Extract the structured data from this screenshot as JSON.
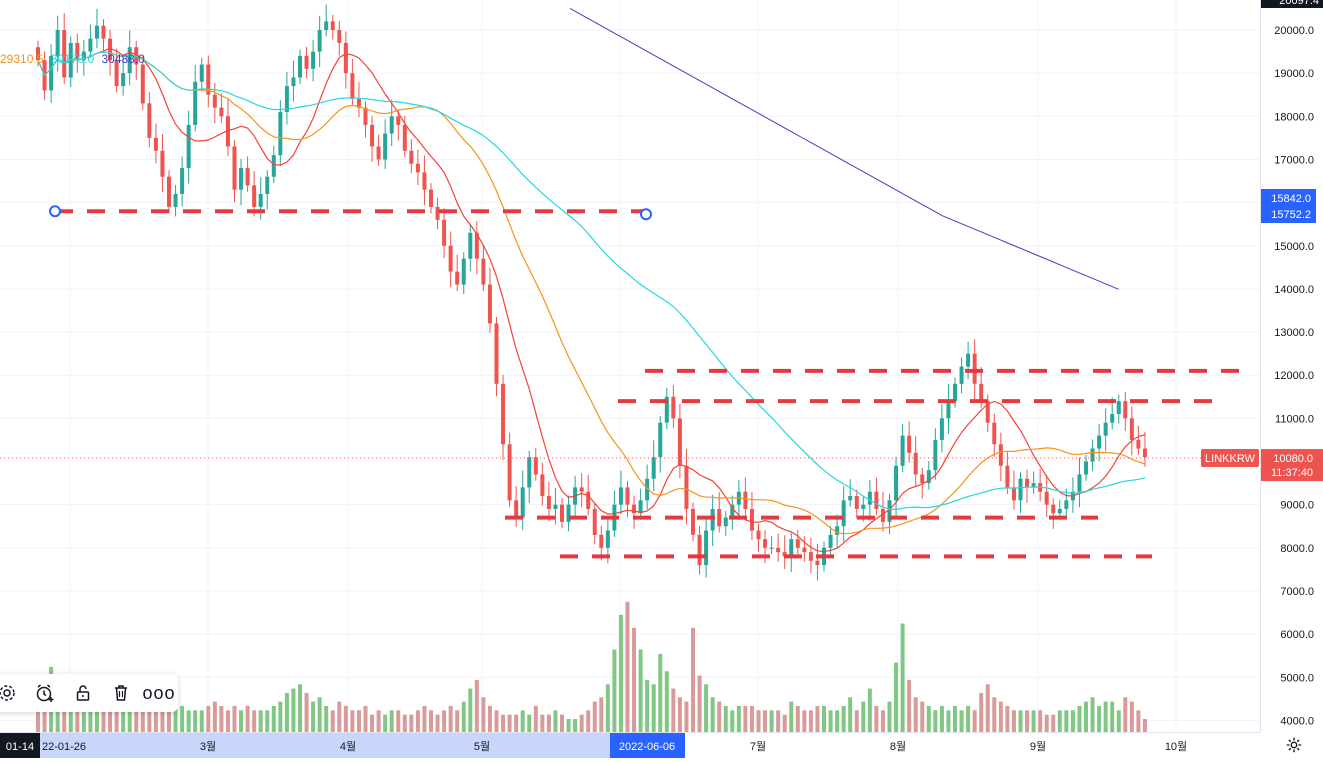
{
  "symbol": "LINKKRW",
  "current_price": "10080.0",
  "countdown": "11:37:40",
  "top_price_label": "20097.4",
  "price_axis": {
    "ticks": [
      "20000.0",
      "19000.0",
      "18000.0",
      "17000.0",
      "15000.0",
      "14000.0",
      "13000.0",
      "12000.0",
      "11000.0",
      "9000.0",
      "8000.0",
      "7000.0",
      "6000.0",
      "5000.0",
      "4000.0"
    ],
    "badge_upper": "15842.0",
    "badge_lower": "15752.2"
  },
  "time_axis": {
    "labels": [
      "3월",
      "4월",
      "5월",
      "7월",
      "8월",
      "9월",
      "10월"
    ],
    "highlight_left_a": "01-14",
    "highlight_left_b": "22-01-26",
    "highlight_date": "2022-06-06"
  },
  "ma_legend": [
    {
      "value": "29310.5",
      "color": "#f7931a"
    },
    {
      "value": "30170.0",
      "color": "#26d7e0"
    },
    {
      "value": "30488.0",
      "color": "#3f3fbf"
    }
  ],
  "colors": {
    "up": "#26a69a",
    "down": "#ef5350",
    "volume_up": "#81c784",
    "volume_down": "#d99a9a",
    "ma_short": "#f44336",
    "ma_mid": "#f7931a",
    "ma_long": "#26d7e0",
    "ma_longest": "#3f3fbf",
    "drawing": "#e53940",
    "accent": "#2962ff"
  },
  "toolbar": {
    "items": [
      "gear-icon",
      "alarm-clock-plus-icon",
      "unlock-icon",
      "trash-icon",
      "more-icon"
    ],
    "more_label": "ooo"
  },
  "chart_data": {
    "type": "candlestick",
    "symbol": "LINKKRW",
    "y_range": [
      3800,
      20300
    ],
    "closes": [
      19300,
      18600,
      19400,
      20000,
      18900,
      19700,
      19300,
      19500,
      19800,
      20100,
      19800,
      19300,
      18700,
      19000,
      19600,
      19200,
      18300,
      17500,
      17200,
      16600,
      15900,
      16200,
      16800,
      17800,
      18800,
      19200,
      18500,
      18200,
      18000,
      17300,
      16300,
      16800,
      16400,
      15900,
      16200,
      16600,
      17100,
      18100,
      18700,
      18900,
      19400,
      19100,
      19500,
      20000,
      20200,
      20000,
      19700,
      19000,
      18400,
      18200,
      17800,
      17300,
      17000,
      17600,
      18000,
      17800,
      17200,
      16900,
      16700,
      16300,
      15900,
      15600,
      15000,
      14400,
      14100,
      14700,
      15300,
      14700,
      14100,
      13200,
      11800,
      10400,
      9100,
      8700,
      9400,
      10100,
      9700,
      9200,
      8900,
      9000,
      8600,
      9000,
      9400,
      9300,
      8900,
      8300,
      8000,
      8400,
      9000,
      9400,
      9000,
      8800,
      9100,
      9600,
      10100,
      10900,
      11500,
      11000,
      9900,
      8900,
      8300,
      7600,
      8400,
      8900,
      8500,
      8700,
      9000,
      9300,
      8900,
      8400,
      8200,
      8000,
      8000,
      7900,
      7800,
      8200,
      8000,
      7900,
      7700,
      7600,
      8000,
      8300,
      8500,
      9100,
      9200,
      8900,
      9000,
      9300,
      8900,
      8600,
      9100,
      9900,
      10600,
      10200,
      9700,
      9500,
      9800,
      10500,
      11000,
      11400,
      11800,
      12200,
      12500,
      11800,
      11400,
      10900,
      10400,
      9900,
      9400,
      9100,
      9600,
      9400,
      9500,
      9300,
      9000,
      8800,
      8900,
      9100,
      9300,
      9700,
      10000,
      10300,
      10600,
      10900,
      11100,
      11400,
      11000,
      10500,
      10300,
      10100
    ],
    "volume": [
      4500,
      4800,
      5300,
      5100,
      4700,
      4600,
      4500,
      4700,
      5100,
      4400,
      4600,
      4500,
      4400,
      4300,
      4300,
      4400,
      4500,
      4300,
      4400,
      4500,
      4600,
      4500,
      4400,
      4300,
      4300,
      4300,
      4400,
      4500,
      4400,
      4300,
      4400,
      4300,
      4400,
      4300,
      4300,
      4300,
      4400,
      4500,
      4700,
      4800,
      4900,
      4700,
      4500,
      4600,
      4400,
      4300,
      4500,
      4400,
      4300,
      4300,
      4400,
      4200,
      4300,
      4200,
      4300,
      4300,
      4200,
      4200,
      4300,
      4400,
      4300,
      4200,
      4300,
      4400,
      4300,
      4500,
      4800,
      5000,
      4600,
      4400,
      4300,
      4200,
      4200,
      4200,
      4300,
      4200,
      4400,
      4200,
      4200,
      4300,
      4200,
      4100,
      4100,
      4200,
      4300,
      4500,
      4600,
      4900,
      5700,
      6500,
      6800,
      6200,
      5700,
      5000,
      4900,
      5600,
      5200,
      4800,
      4600,
      4500,
      6200,
      5100,
      4900,
      4600,
      4500,
      4400,
      4300,
      4400,
      4400,
      4400,
      4300,
      4300,
      4300,
      4300,
      4200,
      4500,
      4400,
      4300,
      4300,
      4400,
      4400,
      4300,
      4300,
      4400,
      4600,
      4300,
      4500,
      4800,
      4400,
      4300,
      4500,
      5400,
      6300,
      5000,
      4600,
      4500,
      4400,
      4300,
      4400,
      4300,
      4400,
      4300,
      4400,
      4300,
      4700,
      4900,
      4600,
      4500,
      4400,
      4300,
      4300,
      4300,
      4300,
      4300,
      4200,
      4200,
      4300,
      4300,
      4300,
      4400,
      4500,
      4600,
      4400,
      4500,
      4500,
      4300,
      4600,
      4500,
      4300,
      4100
    ],
    "horizontal_lines": [
      {
        "price": 15800,
        "x_from": "2022-01-14",
        "x_to": "2022-06-06"
      },
      {
        "price": 12100
      },
      {
        "price": 11400
      },
      {
        "price": 8700
      },
      {
        "price": 7800
      }
    ],
    "current_price": 10080,
    "time_axis_labels": [
      "3월",
      "4월",
      "5월",
      "7월",
      "8월",
      "9월",
      "10월"
    ]
  }
}
